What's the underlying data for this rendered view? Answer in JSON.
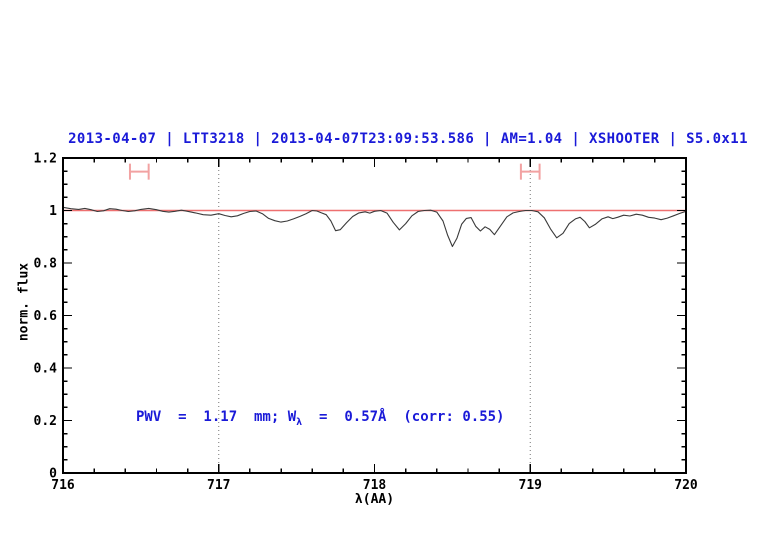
{
  "colors": {
    "title_blue": "#1a1ad8",
    "annotation_blue": "#1a1ad8",
    "continuum_red": "#ee7070",
    "marker_salmon": "#f2a2a2",
    "spectrum_black": "#3a3a3a",
    "dotted_gray": "#777777",
    "frame_black": "#000000"
  },
  "annotation": {
    "prefix": "PWV  =  1.17  mm; W",
    "sub": "λ",
    "suffix": "  =  0.57Å  (corr: 0.55)"
  },
  "chart_data": {
    "type": "line",
    "title": "2013-04-07 | LTT3218 | 2013-04-07T23:09:53.586 | AM=1.04 | XSHOOTER | S5.0x11",
    "xlabel": "λ(AA)",
    "ylabel": "norm. flux",
    "xlim": [
      716,
      720
    ],
    "ylim": [
      0,
      1.2
    ],
    "x_major_tick": 1,
    "x_minor_tick": 0.2,
    "y_major_tick": 0.2,
    "y_minor_tick": 0.05,
    "x_tick_labels": [
      "716",
      "717",
      "718",
      "719",
      "720"
    ],
    "y_tick_labels": [
      "0",
      "0.2",
      "0.4",
      "0.6",
      "0.8",
      "1",
      "1.2"
    ],
    "grid": false,
    "legend": "none",
    "reference_lines": {
      "horizontal": [
        {
          "y": 1.0,
          "color": "#ee7070",
          "style": "solid"
        }
      ],
      "vertical": [
        {
          "x": 717,
          "style": "dotted"
        },
        {
          "x": 719,
          "style": "dotted"
        }
      ]
    },
    "markers": [
      {
        "type": "x-interval",
        "x": 716.49,
        "xerr": 0.06,
        "y": 1.148,
        "color": "#f2a2a2"
      },
      {
        "type": "x-interval",
        "x": 719.0,
        "xerr": 0.06,
        "y": 1.148,
        "color": "#f2a2a2"
      }
    ],
    "annotations": [
      {
        "text": "PWV = 1.17 mm; Wλ = 0.57Å (corr: 0.55)",
        "x": 716.47,
        "y": 0.22,
        "color": "#1a1ad8"
      }
    ],
    "series": [
      {
        "name": "normalized telluric spectrum",
        "color": "#3a3a3a",
        "points": [
          [
            716.0,
            1.012
          ],
          [
            716.05,
            1.007
          ],
          [
            716.1,
            1.004
          ],
          [
            716.14,
            1.008
          ],
          [
            716.18,
            1.003
          ],
          [
            716.22,
            0.996
          ],
          [
            716.26,
            0.999
          ],
          [
            716.3,
            1.007
          ],
          [
            716.34,
            1.005
          ],
          [
            716.38,
            1.0
          ],
          [
            716.42,
            0.996
          ],
          [
            716.46,
            0.999
          ],
          [
            716.5,
            1.004
          ],
          [
            716.55,
            1.008
          ],
          [
            716.6,
            1.003
          ],
          [
            716.64,
            0.997
          ],
          [
            716.68,
            0.994
          ],
          [
            716.72,
            0.997
          ],
          [
            716.76,
            1.001
          ],
          [
            716.8,
            0.997
          ],
          [
            716.85,
            0.991
          ],
          [
            716.9,
            0.984
          ],
          [
            716.95,
            0.982
          ],
          [
            717.0,
            0.988
          ],
          [
            717.04,
            0.981
          ],
          [
            717.08,
            0.976
          ],
          [
            717.12,
            0.98
          ],
          [
            717.16,
            0.989
          ],
          [
            717.2,
            0.996
          ],
          [
            717.24,
            0.998
          ],
          [
            717.28,
            0.988
          ],
          [
            717.32,
            0.97
          ],
          [
            717.36,
            0.961
          ],
          [
            717.4,
            0.956
          ],
          [
            717.44,
            0.96
          ],
          [
            717.48,
            0.968
          ],
          [
            717.52,
            0.977
          ],
          [
            717.56,
            0.988
          ],
          [
            717.6,
            1.0
          ],
          [
            717.63,
            0.998
          ],
          [
            717.66,
            0.991
          ],
          [
            717.69,
            0.984
          ],
          [
            717.72,
            0.96
          ],
          [
            717.75,
            0.923
          ],
          [
            717.78,
            0.927
          ],
          [
            717.82,
            0.953
          ],
          [
            717.86,
            0.977
          ],
          [
            717.9,
            0.991
          ],
          [
            717.94,
            0.995
          ],
          [
            717.97,
            0.99
          ],
          [
            718.0,
            0.997
          ],
          [
            718.04,
            1.0
          ],
          [
            718.08,
            0.99
          ],
          [
            718.12,
            0.955
          ],
          [
            718.16,
            0.926
          ],
          [
            718.2,
            0.95
          ],
          [
            718.24,
            0.98
          ],
          [
            718.28,
            0.996
          ],
          [
            718.32,
            1.0
          ],
          [
            718.36,
            1.001
          ],
          [
            718.4,
            0.994
          ],
          [
            718.44,
            0.96
          ],
          [
            718.47,
            0.905
          ],
          [
            718.5,
            0.863
          ],
          [
            718.53,
            0.895
          ],
          [
            718.56,
            0.948
          ],
          [
            718.59,
            0.97
          ],
          [
            718.62,
            0.973
          ],
          [
            718.65,
            0.94
          ],
          [
            718.68,
            0.922
          ],
          [
            718.71,
            0.938
          ],
          [
            718.74,
            0.928
          ],
          [
            718.77,
            0.908
          ],
          [
            718.81,
            0.942
          ],
          [
            718.85,
            0.976
          ],
          [
            718.89,
            0.991
          ],
          [
            718.93,
            0.996
          ],
          [
            718.97,
            1.0
          ],
          [
            719.01,
            1.0
          ],
          [
            719.05,
            0.995
          ],
          [
            719.09,
            0.972
          ],
          [
            719.13,
            0.93
          ],
          [
            719.17,
            0.896
          ],
          [
            719.21,
            0.913
          ],
          [
            719.25,
            0.95
          ],
          [
            719.29,
            0.968
          ],
          [
            719.32,
            0.974
          ],
          [
            719.35,
            0.958
          ],
          [
            719.38,
            0.934
          ],
          [
            719.42,
            0.948
          ],
          [
            719.46,
            0.968
          ],
          [
            719.5,
            0.976
          ],
          [
            719.53,
            0.969
          ],
          [
            719.56,
            0.974
          ],
          [
            719.6,
            0.982
          ],
          [
            719.64,
            0.979
          ],
          [
            719.68,
            0.986
          ],
          [
            719.72,
            0.982
          ],
          [
            719.76,
            0.974
          ],
          [
            719.8,
            0.971
          ],
          [
            719.84,
            0.965
          ],
          [
            719.88,
            0.971
          ],
          [
            719.92,
            0.98
          ],
          [
            719.96,
            0.989
          ],
          [
            720.0,
            0.997
          ]
        ]
      }
    ]
  }
}
